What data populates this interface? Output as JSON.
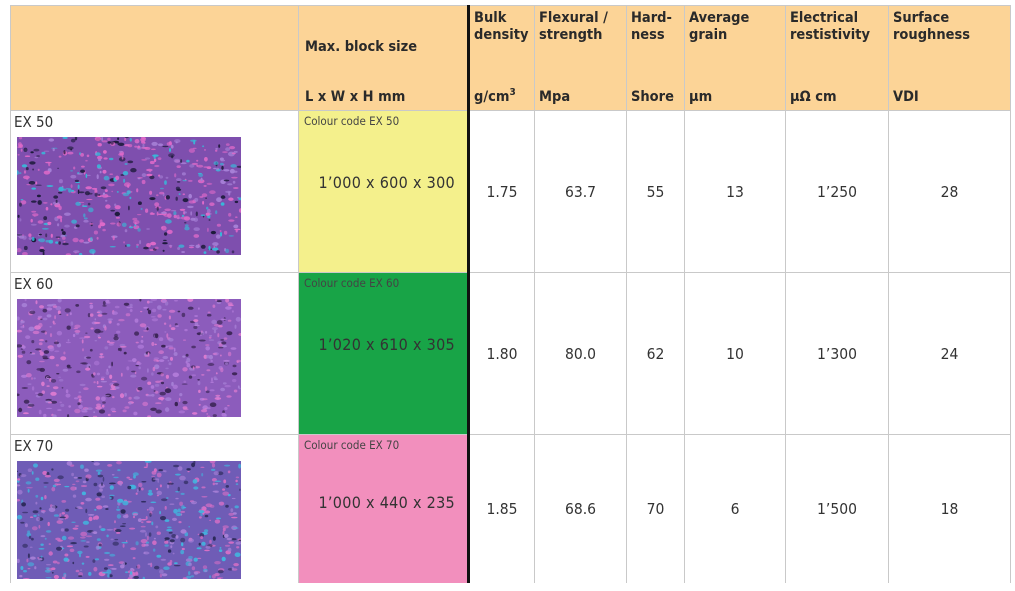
{
  "header": {
    "size": {
      "top": "Max. block size",
      "unit": "L x W x H mm"
    },
    "bulk": {
      "top": [
        "Bulk",
        "density"
      ],
      "unit": "g/cm",
      "unit_sup": "3"
    },
    "flex": {
      "top": [
        "Flexural /",
        "strength"
      ],
      "unit": "Mpa"
    },
    "hard": {
      "top": [
        "Hard-",
        "ness"
      ],
      "unit": "Shore"
    },
    "grain": {
      "top": [
        "Average",
        "grain"
      ],
      "unit": "µm"
    },
    "elec": {
      "top": [
        "Electrical",
        "restistivity"
      ],
      "unit": "µΩ cm"
    },
    "surf": {
      "top": [
        "Surface",
        "roughness"
      ],
      "unit": "VDI"
    }
  },
  "rows": [
    {
      "grade": "EX 50",
      "code": "Colour code EX 50",
      "color": "#f4f08c",
      "dims": "1’000 x 600 x 300",
      "bulk": "1.75",
      "flex": "63.7",
      "hard": "55",
      "grain": "13",
      "elec": "1’250",
      "surf": "28",
      "texture": {
        "base": "#7e4fae",
        "speck": "#e06ac9",
        "dark": "#1c1a3a",
        "accent": "#38b9d9"
      }
    },
    {
      "grade": "EX 60",
      "code": "Colour code EX 60",
      "color": "#18a447",
      "dims": "1’020 x 610 x 305",
      "bulk": "1.80",
      "flex": "80.0",
      "hard": "62",
      "grain": "10",
      "elec": "1’300",
      "surf": "24",
      "texture": {
        "base": "#8c5cbc",
        "speck": "#dc7bd0",
        "dark": "#3a2454",
        "accent": "#b07ad9"
      }
    },
    {
      "grade": "EX 70",
      "code": "Colour code EX 70",
      "color": "#f28fbd",
      "dims": "1’000 x 440 x 235",
      "bulk": "1.85",
      "flex": "68.6",
      "hard": "70",
      "grain": "6",
      "elec": "1’500",
      "surf": "18",
      "texture": {
        "base": "#6f5cb6",
        "speck": "#d66fc6",
        "dark": "#2c2a5a",
        "accent": "#43b3de"
      }
    }
  ]
}
